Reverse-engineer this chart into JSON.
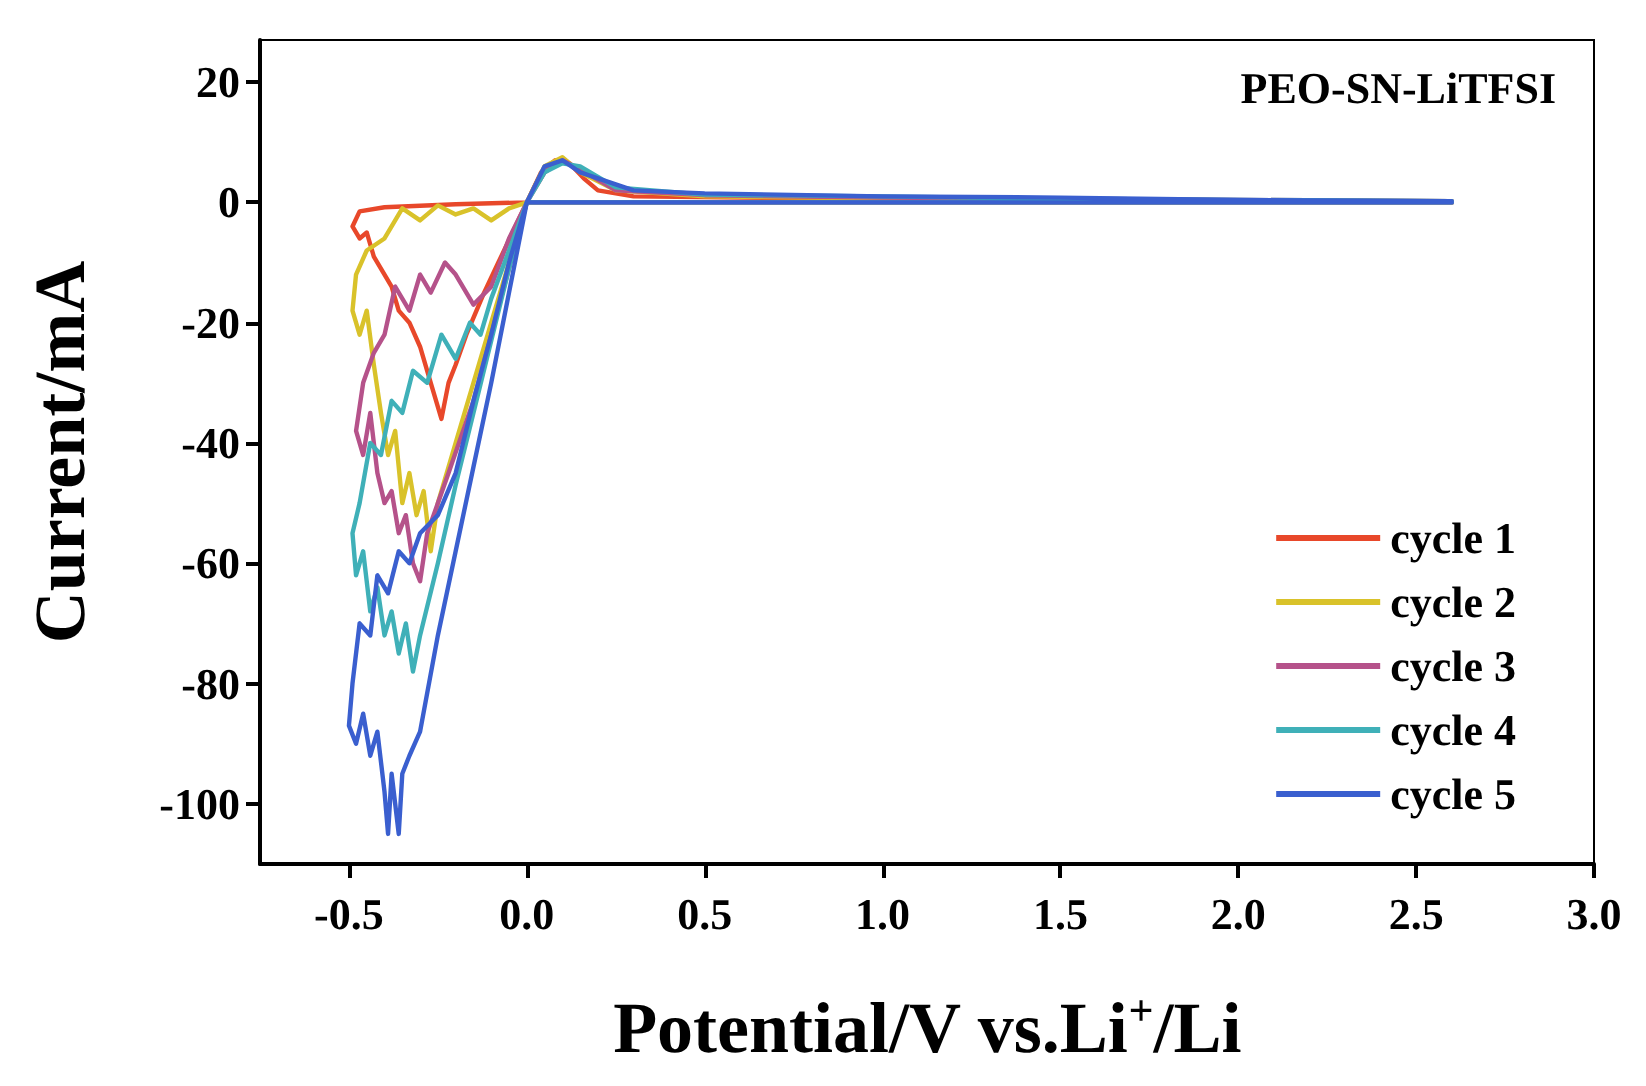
{
  "chart_data": {
    "type": "line",
    "title": "PEO-SN-LiTFSI",
    "xlabel": "Potential/V vs.Li$^{+}$/Li",
    "ylabel": "Current/mA",
    "xlim": [
      -0.75,
      3.0
    ],
    "xticks": [
      -0.5,
      {
        "value": 0,
        "label": "0.0"
      },
      0.5,
      {
        "value": 1,
        "label": "1.0"
      },
      1.5,
      {
        "value": 2,
        "label": "2.0"
      },
      2.5,
      {
        "value": 3,
        "label": "3.0"
      }
    ],
    "ylim": [
      -110,
      27
    ],
    "yticks": [
      -100,
      -80,
      -60,
      -40,
      -20,
      0,
      20
    ],
    "legend": "bottom right",
    "grid": false,
    "marker": "none",
    "line_style": "solid",
    "series": [
      {
        "name": "cycle 1",
        "color": "#e8482a",
        "x": [
          2.6,
          1.5,
          0.5,
          0,
          -0.2,
          -0.4,
          -0.47,
          -0.49,
          -0.47,
          -0.45,
          -0.43,
          -0.4,
          -0.38,
          -0.36,
          -0.33,
          -0.3,
          -0.28,
          -0.26,
          -0.24,
          -0.22,
          -0.2,
          -0.17,
          -0.12,
          -0.08,
          -0.04,
          0,
          0.04,
          0.08,
          0.12,
          0.16,
          0.2,
          0.3,
          0.6,
          1.0
        ],
        "values": [
          0,
          0,
          0,
          0,
          -0.3,
          -0.8,
          -1.5,
          -4,
          -6,
          -5,
          -9,
          -12,
          -14,
          -18,
          -20,
          -24,
          -28,
          -32,
          -36,
          -30,
          -27,
          -22,
          -15,
          -10,
          -5,
          0,
          5,
          7,
          6.5,
          4,
          2,
          1,
          0.8,
          0.6
        ]
      },
      {
        "name": "cycle 2",
        "color": "#d9c22a",
        "x": [
          2.6,
          0.5,
          0,
          -0.05,
          -0.1,
          -0.15,
          -0.2,
          -0.25,
          -0.3,
          -0.35,
          -0.4,
          -0.45,
          -0.48,
          -0.49,
          -0.47,
          -0.45,
          -0.43,
          -0.41,
          -0.39,
          -0.37,
          -0.35,
          -0.33,
          -0.31,
          -0.29,
          -0.27,
          -0.25,
          -0.2,
          -0.15,
          -0.1,
          -0.05,
          0,
          0.05,
          0.1,
          0.15,
          0.25,
          0.5,
          1.0,
          1.5,
          2.6
        ],
        "values": [
          0,
          0,
          0,
          -1,
          -3,
          -1,
          -2,
          -0.5,
          -3,
          -1,
          -6,
          -8,
          -12,
          -18,
          -22,
          -18,
          -27,
          -35,
          -42,
          -38,
          -50,
          -45,
          -52,
          -48,
          -58,
          -50,
          -40,
          -30,
          -20,
          -10,
          0,
          6,
          7.5,
          5,
          2,
          1,
          0.7,
          0.5,
          0.2
        ]
      },
      {
        "name": "cycle 3",
        "color": "#b5528a",
        "x": [
          2.6,
          0.5,
          0,
          -0.05,
          -0.1,
          -0.15,
          -0.2,
          -0.23,
          -0.27,
          -0.3,
          -0.33,
          -0.37,
          -0.4,
          -0.43,
          -0.46,
          -0.48,
          -0.46,
          -0.44,
          -0.42,
          -0.4,
          -0.38,
          -0.36,
          -0.34,
          -0.32,
          -0.3,
          -0.28,
          -0.22,
          -0.15,
          -0.1,
          -0.05,
          0,
          0.05,
          0.1,
          0.15,
          0.25,
          0.5,
          1.0,
          1.5,
          2.6
        ],
        "values": [
          0,
          0,
          0,
          -6,
          -14,
          -17,
          -12,
          -10,
          -15,
          -12,
          -18,
          -14,
          -22,
          -25,
          -30,
          -38,
          -42,
          -35,
          -45,
          -50,
          -48,
          -55,
          -52,
          -60,
          -63,
          -55,
          -45,
          -33,
          -22,
          -11,
          0,
          5,
          7,
          5.5,
          2,
          1.2,
          0.8,
          0.6,
          0.2
        ]
      },
      {
        "name": "cycle 4",
        "color": "#3fb0b8",
        "x": [
          2.6,
          0.5,
          0,
          -0.05,
          -0.1,
          -0.13,
          -0.16,
          -0.2,
          -0.24,
          -0.28,
          -0.32,
          -0.35,
          -0.38,
          -0.41,
          -0.44,
          -0.47,
          -0.49,
          -0.48,
          -0.46,
          -0.44,
          -0.42,
          -0.4,
          -0.38,
          -0.36,
          -0.34,
          -0.32,
          -0.3,
          -0.25,
          -0.2,
          -0.15,
          -0.1,
          -0.05,
          0,
          0.05,
          0.1,
          0.15,
          0.25,
          0.5,
          1.0,
          1.5,
          2.6
        ],
        "values": [
          0,
          0,
          0,
          -8,
          -16,
          -22,
          -20,
          -26,
          -22,
          -30,
          -28,
          -35,
          -33,
          -42,
          -40,
          -50,
          -55,
          -62,
          -58,
          -68,
          -64,
          -72,
          -68,
          -75,
          -70,
          -78,
          -72,
          -60,
          -47,
          -35,
          -23,
          -11,
          0,
          5,
          6.5,
          6,
          2.5,
          1.3,
          1,
          0.6,
          0.2
        ]
      },
      {
        "name": "cycle 5",
        "color": "#3a5fcf",
        "x": [
          2.6,
          0.5,
          0,
          -0.05,
          -0.1,
          -0.15,
          -0.2,
          -0.25,
          -0.3,
          -0.33,
          -0.36,
          -0.39,
          -0.42,
          -0.44,
          -0.47,
          -0.49,
          -0.5,
          -0.48,
          -0.46,
          -0.44,
          -0.42,
          -0.4,
          -0.39,
          -0.38,
          -0.37,
          -0.36,
          -0.35,
          -0.33,
          -0.3,
          -0.25,
          -0.2,
          -0.15,
          -0.1,
          -0.05,
          0,
          0.05,
          0.1,
          0.15,
          0.2,
          0.3,
          0.5,
          1.0,
          1.5,
          2.0,
          2.6
        ],
        "values": [
          0,
          0,
          0,
          -10,
          -22,
          -33,
          -45,
          -52,
          -55,
          -60,
          -58,
          -65,
          -62,
          -72,
          -70,
          -80,
          -87,
          -90,
          -85,
          -92,
          -88,
          -98,
          -105,
          -95,
          -100,
          -105,
          -95,
          -92,
          -88,
          -72,
          -58,
          -44,
          -30,
          -15,
          0,
          6,
          7,
          5,
          4,
          2,
          1.5,
          1,
          0.8,
          0.4,
          0.2
        ]
      }
    ]
  }
}
